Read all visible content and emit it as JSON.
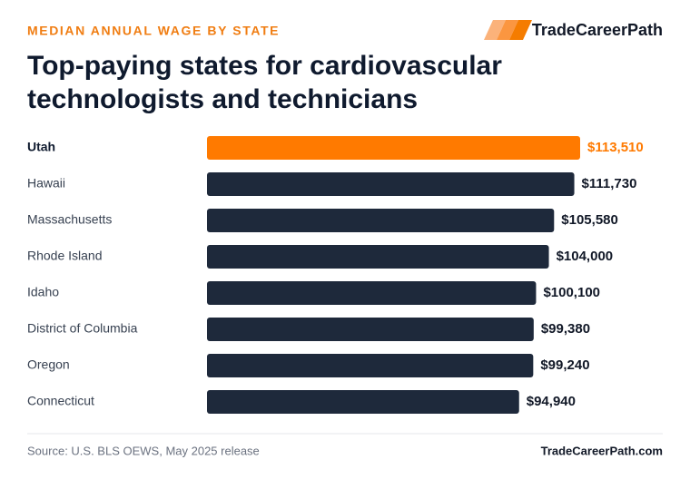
{
  "chart_data": {
    "type": "bar",
    "orientation": "horizontal",
    "subtitle": "MEDIAN ANNUAL WAGE BY STATE",
    "brand": "TradeCareerPath",
    "title": [
      "Top-paying states for cardiovascular",
      "technologists and technicians"
    ],
    "categories": [
      "Utah",
      "Hawaii",
      "Massachusetts",
      "Rhode Island",
      "Idaho",
      "District of Columbia",
      "Oregon",
      "Connecticut"
    ],
    "values": [
      113510,
      111730,
      105580,
      104000,
      100100,
      99380,
      99240,
      94940
    ],
    "value_labels": [
      "$113,510",
      "$111,730",
      "$105,580",
      "$104,000",
      "$100,100",
      "$99,380",
      "$99,240",
      "$94,940"
    ],
    "bar_color": "#1e293b",
    "highlight_color": "#ff7a00",
    "highlight_index": 0,
    "source": "Source: U.S. BLS OEWS, May 2025 release",
    "footer": "TradeCareerPath.com"
  }
}
